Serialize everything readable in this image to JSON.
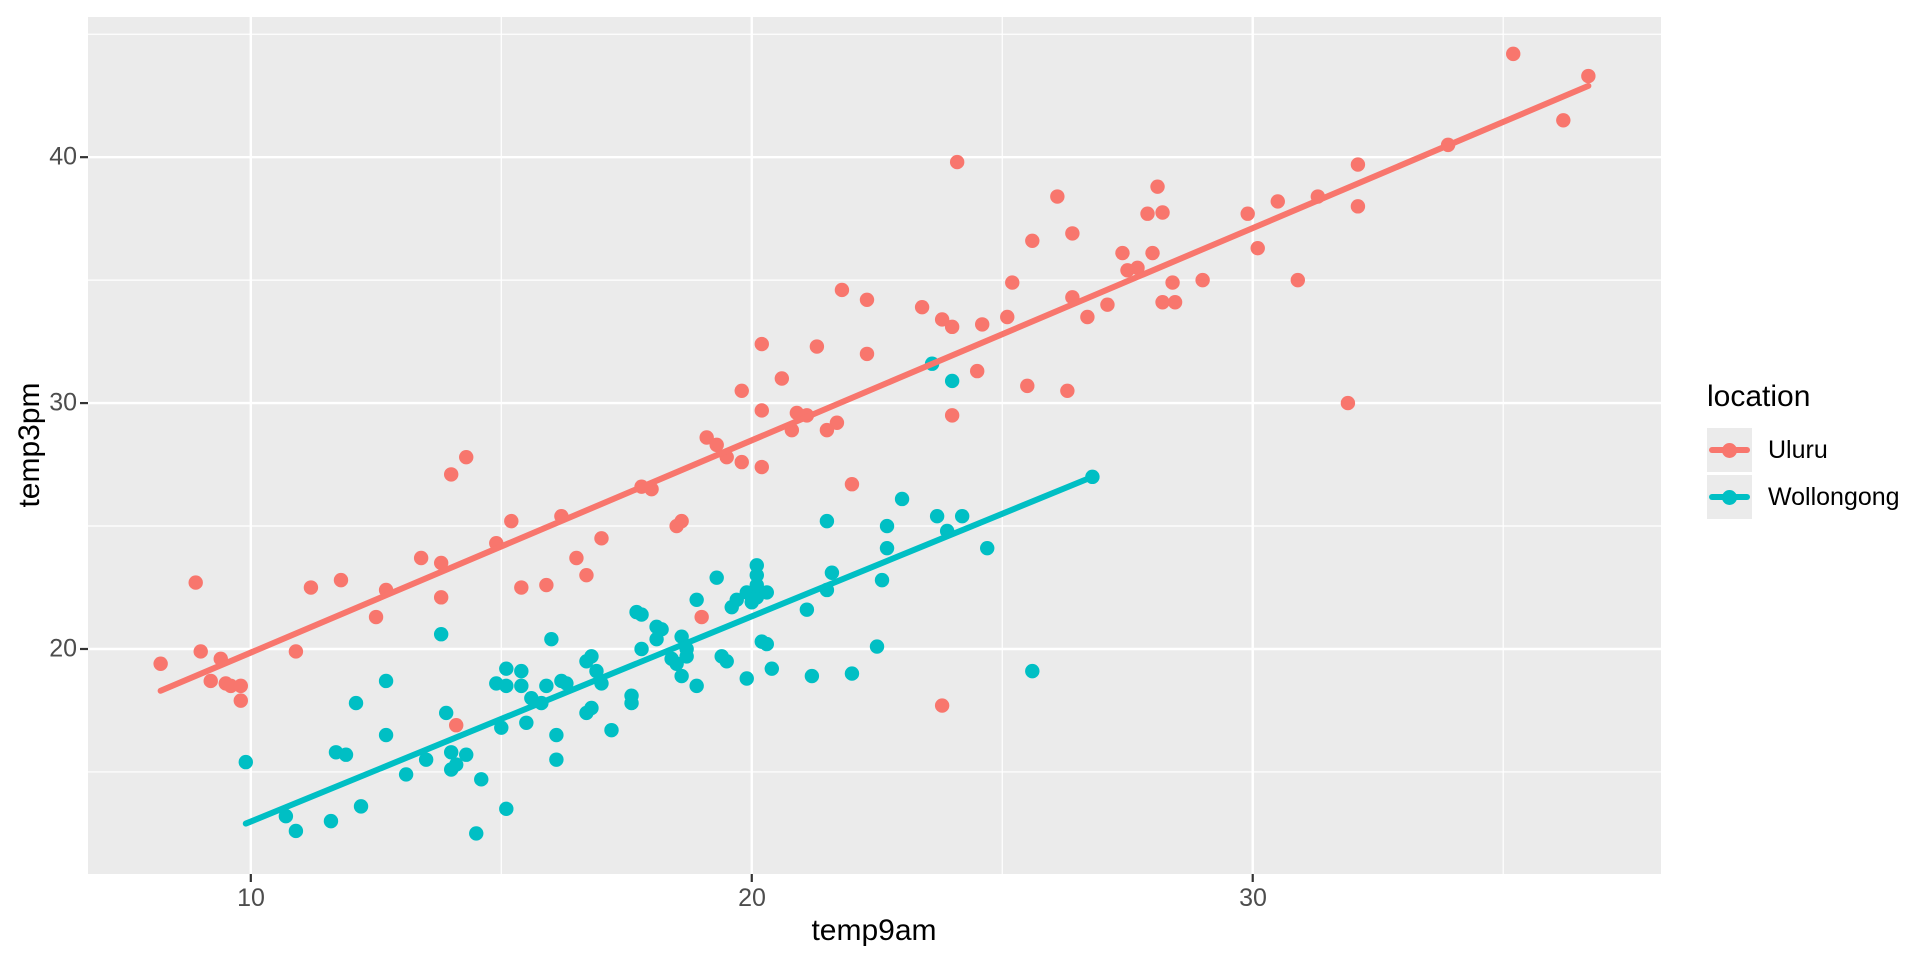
{
  "chart_data": {
    "type": "scatter",
    "xlabel": "temp9am",
    "ylabel": "temp3pm",
    "x_ticks": [
      10,
      20,
      30
    ],
    "y_ticks": [
      20,
      30,
      40
    ],
    "x_tick_labels": [
      "10",
      "20",
      "30"
    ],
    "y_tick_labels": [
      "20",
      "30",
      "40"
    ],
    "x_minor": [
      15,
      25,
      35
    ],
    "y_minor": [
      15,
      25,
      35,
      45
    ],
    "xlim": [
      6.75,
      38.15
    ],
    "ylim": [
      10.85,
      45.7
    ],
    "grid": true,
    "legend": {
      "title": "location",
      "position": "right",
      "entries": [
        {
          "label": "Uluru",
          "color": "#F8766D"
        },
        {
          "label": "Wollongong",
          "color": "#00BFC4"
        }
      ]
    },
    "series": [
      {
        "name": "Uluru",
        "color": "#F8766D",
        "trend": {
          "x1": 8.2,
          "y1": 18.3,
          "x2": 36.7,
          "y2": 42.9
        },
        "points": [
          [
            8.2,
            19.4
          ],
          [
            8.9,
            22.7
          ],
          [
            9.0,
            19.9
          ],
          [
            9.4,
            19.6
          ],
          [
            9.2,
            18.7
          ],
          [
            9.5,
            18.6
          ],
          [
            9.6,
            18.5
          ],
          [
            9.8,
            18.5
          ],
          [
            9.8,
            17.9
          ],
          [
            10.9,
            19.9
          ],
          [
            11.2,
            22.5
          ],
          [
            11.8,
            22.8
          ],
          [
            12.7,
            22.4
          ],
          [
            12.5,
            21.3
          ],
          [
            13.4,
            23.7
          ],
          [
            13.8,
            23.5
          ],
          [
            13.8,
            22.1
          ],
          [
            14.0,
            27.1
          ],
          [
            14.3,
            27.8
          ],
          [
            14.1,
            16.9
          ],
          [
            14.9,
            24.3
          ],
          [
            15.2,
            25.2
          ],
          [
            16.2,
            25.4
          ],
          [
            16.5,
            23.7
          ],
          [
            16.7,
            23.0
          ],
          [
            15.4,
            22.5
          ],
          [
            15.9,
            22.6
          ],
          [
            17.0,
            24.5
          ],
          [
            17.8,
            26.6
          ],
          [
            18.0,
            26.5
          ],
          [
            18.5,
            25.0
          ],
          [
            18.6,
            25.2
          ],
          [
            19.0,
            21.3
          ],
          [
            19.5,
            27.8
          ],
          [
            19.8,
            27.6
          ],
          [
            20.2,
            27.4
          ],
          [
            22.0,
            26.7
          ],
          [
            21.8,
            34.6
          ],
          [
            22.3,
            34.2
          ],
          [
            20.2,
            32.4
          ],
          [
            21.3,
            32.3
          ],
          [
            22.3,
            32.0
          ],
          [
            20.6,
            31.0
          ],
          [
            19.8,
            30.5
          ],
          [
            20.2,
            29.7
          ],
          [
            20.9,
            29.6
          ],
          [
            21.1,
            29.5
          ],
          [
            21.7,
            29.2
          ],
          [
            20.8,
            28.9
          ],
          [
            21.5,
            28.9
          ],
          [
            19.1,
            28.6
          ],
          [
            19.3,
            28.3
          ],
          [
            24.1,
            39.8
          ],
          [
            26.1,
            38.4
          ],
          [
            28.1,
            38.8
          ],
          [
            27.9,
            37.7
          ],
          [
            28.2,
            37.75
          ],
          [
            26.4,
            36.9
          ],
          [
            25.6,
            36.6
          ],
          [
            29.9,
            37.7
          ],
          [
            30.1,
            36.3
          ],
          [
            27.4,
            36.1
          ],
          [
            28.0,
            36.1
          ],
          [
            27.5,
            35.4
          ],
          [
            27.7,
            35.5
          ],
          [
            25.2,
            34.9
          ],
          [
            28.4,
            34.9
          ],
          [
            29.0,
            35.0
          ],
          [
            26.4,
            34.3
          ],
          [
            23.4,
            33.9
          ],
          [
            27.1,
            34.0
          ],
          [
            28.2,
            34.1
          ],
          [
            28.45,
            34.1
          ],
          [
            23.8,
            33.4
          ],
          [
            24.0,
            33.1
          ],
          [
            24.6,
            33.2
          ],
          [
            25.1,
            33.5
          ],
          [
            26.7,
            33.5
          ],
          [
            24.5,
            31.3
          ],
          [
            25.5,
            30.7
          ],
          [
            26.3,
            30.5
          ],
          [
            24.0,
            29.5
          ],
          [
            35.2,
            44.2
          ],
          [
            36.7,
            43.3
          ],
          [
            36.2,
            41.5
          ],
          [
            33.9,
            40.5
          ],
          [
            32.1,
            39.7
          ],
          [
            31.3,
            38.4
          ],
          [
            30.5,
            38.2
          ],
          [
            32.1,
            38.0
          ],
          [
            30.9,
            35.0
          ],
          [
            31.9,
            30.0
          ],
          [
            23.8,
            17.7
          ]
        ]
      },
      {
        "name": "Wollongong",
        "color": "#00BFC4",
        "trend": {
          "x1": 9.9,
          "y1": 12.9,
          "x2": 26.8,
          "y2": 27.0
        },
        "points": [
          [
            9.9,
            15.4
          ],
          [
            10.7,
            13.2
          ],
          [
            10.9,
            12.6
          ],
          [
            11.6,
            13.0
          ],
          [
            12.2,
            13.6
          ],
          [
            11.7,
            15.8
          ],
          [
            11.9,
            15.7
          ],
          [
            12.7,
            16.5
          ],
          [
            12.1,
            17.8
          ],
          [
            12.7,
            18.7
          ],
          [
            13.1,
            14.9
          ],
          [
            13.5,
            15.5
          ],
          [
            13.9,
            17.4
          ],
          [
            14.0,
            15.8
          ],
          [
            14.1,
            15.3
          ],
          [
            14.0,
            15.1
          ],
          [
            14.3,
            15.7
          ],
          [
            14.6,
            14.7
          ],
          [
            14.5,
            12.5
          ],
          [
            13.8,
            20.6
          ],
          [
            15.1,
            13.5
          ],
          [
            16.0,
            20.4
          ],
          [
            15.1,
            19.2
          ],
          [
            15.4,
            19.1
          ],
          [
            15.4,
            18.5
          ],
          [
            15.1,
            18.5
          ],
          [
            14.9,
            18.6
          ],
          [
            15.9,
            18.5
          ],
          [
            15.6,
            18.0
          ],
          [
            15.8,
            17.8
          ],
          [
            16.2,
            18.7
          ],
          [
            16.3,
            18.6
          ],
          [
            15.0,
            16.8
          ],
          [
            15.5,
            17.0
          ],
          [
            16.1,
            16.5
          ],
          [
            16.1,
            15.5
          ],
          [
            16.7,
            19.5
          ],
          [
            16.8,
            19.7
          ],
          [
            16.7,
            17.4
          ],
          [
            16.8,
            17.6
          ],
          [
            16.9,
            19.1
          ],
          [
            17.0,
            18.6
          ],
          [
            17.2,
            16.7
          ],
          [
            17.6,
            18.1
          ],
          [
            17.6,
            17.8
          ],
          [
            17.7,
            21.5
          ],
          [
            17.8,
            21.4
          ],
          [
            17.8,
            20.0
          ],
          [
            18.1,
            20.9
          ],
          [
            18.2,
            20.8
          ],
          [
            18.1,
            20.4
          ],
          [
            18.4,
            19.6
          ],
          [
            18.5,
            19.4
          ],
          [
            18.6,
            20.5
          ],
          [
            18.7,
            20.0
          ],
          [
            18.7,
            19.7
          ],
          [
            18.6,
            18.9
          ],
          [
            18.9,
            18.5
          ],
          [
            18.9,
            22.0
          ],
          [
            19.3,
            22.9
          ],
          [
            19.6,
            21.7
          ],
          [
            19.7,
            22.0
          ],
          [
            19.4,
            19.7
          ],
          [
            19.5,
            19.5
          ],
          [
            19.9,
            22.3
          ],
          [
            20.0,
            21.9
          ],
          [
            20.1,
            22.1
          ],
          [
            20.1,
            23.4
          ],
          [
            20.1,
            23.0
          ],
          [
            20.1,
            22.6
          ],
          [
            20.3,
            22.3
          ],
          [
            19.9,
            18.8
          ],
          [
            20.2,
            20.3
          ],
          [
            20.3,
            20.2
          ],
          [
            20.4,
            19.2
          ],
          [
            21.1,
            21.6
          ],
          [
            21.2,
            18.9
          ],
          [
            21.5,
            22.4
          ],
          [
            21.6,
            23.1
          ],
          [
            21.5,
            25.2
          ],
          [
            22.0,
            19.0
          ],
          [
            22.5,
            20.1
          ],
          [
            22.6,
            22.8
          ],
          [
            22.7,
            25.0
          ],
          [
            22.7,
            24.1
          ],
          [
            23.0,
            26.1
          ],
          [
            23.7,
            25.4
          ],
          [
            24.2,
            25.4
          ],
          [
            23.9,
            24.8
          ],
          [
            24.7,
            24.1
          ],
          [
            25.6,
            19.1
          ],
          [
            26.8,
            27.0
          ],
          [
            23.6,
            31.6
          ],
          [
            24.0,
            30.9
          ]
        ]
      }
    ]
  },
  "colors": {
    "panel_bg": "#EBEBEB",
    "grid": "#FFFFFF",
    "tick_mark": "#333333",
    "tick_text": "#4D4D4D",
    "title_text": "#000000",
    "page_bg": "#FFFFFF"
  }
}
